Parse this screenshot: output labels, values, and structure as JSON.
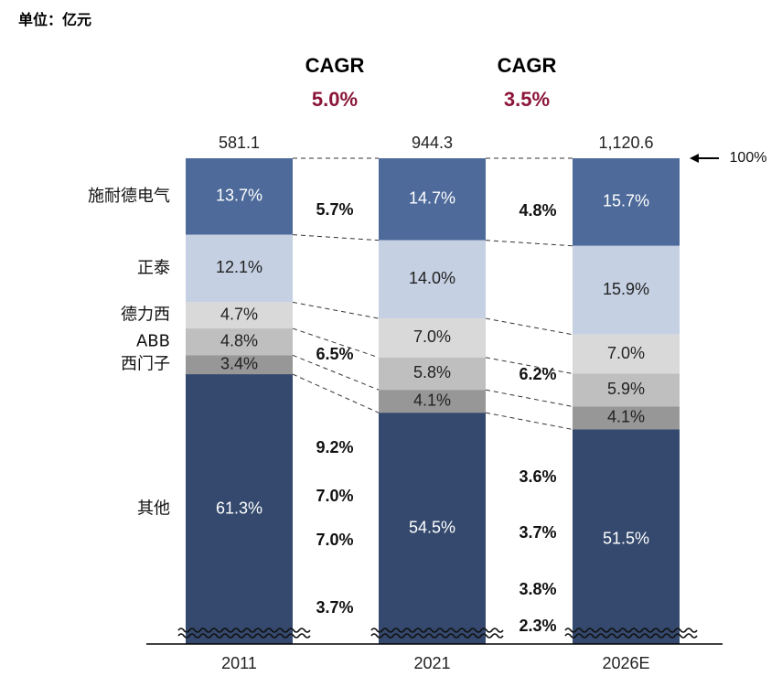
{
  "unit_label": "单位：亿元",
  "chart_data": {
    "type": "bar",
    "stacked": true,
    "normalized": true,
    "categories": [
      "2011",
      "2021",
      "2026E"
    ],
    "totals": [
      "581.1",
      "944.3",
      "1,120.6"
    ],
    "top_marker": "100%",
    "axis_break": true,
    "series": [
      {
        "name": "施耐德电气",
        "values": [
          13.7,
          14.7,
          15.7
        ],
        "labels": [
          "13.7%",
          "14.7%",
          "15.7%"
        ],
        "color": "#4D6A9A",
        "text_color": "#ffffff"
      },
      {
        "name": "正泰",
        "values": [
          12.1,
          14.0,
          15.9
        ],
        "labels": [
          "12.1%",
          "14.0%",
          "15.9%"
        ],
        "color": "#C5D0E2",
        "text_color": "#222222"
      },
      {
        "name": "德力西",
        "values": [
          4.7,
          7.0,
          7.0
        ],
        "labels": [
          "4.7%",
          "7.0%",
          "7.0%"
        ],
        "color": "#D9D9D9",
        "text_color": "#222222"
      },
      {
        "name": "ABB",
        "values": [
          4.8,
          5.8,
          5.9
        ],
        "labels": [
          "4.8%",
          "5.8%",
          "5.9%"
        ],
        "color": "#BFBFBF",
        "text_color": "#222222"
      },
      {
        "name": "西门子",
        "values": [
          3.4,
          4.1,
          4.1
        ],
        "labels": [
          "3.4%",
          "4.1%",
          "4.1%"
        ],
        "color": "#979797",
        "text_color": "#222222"
      },
      {
        "name": "其他",
        "values": [
          61.3,
          54.5,
          51.5
        ],
        "labels": [
          "61.3%",
          "54.5%",
          "51.5%"
        ],
        "color": "#34496D",
        "text_color": "#ffffff"
      }
    ],
    "cagr_overall": [
      {
        "title": "CAGR",
        "value": "5.0%"
      },
      {
        "title": "CAGR",
        "value": "3.5%"
      }
    ],
    "segment_cagr": [
      [
        "5.7%",
        "6.5%",
        "9.2%",
        "7.0%",
        "7.0%",
        "3.7%"
      ],
      [
        "4.8%",
        "6.2%",
        "3.6%",
        "3.7%",
        "3.8%",
        "2.3%"
      ]
    ],
    "accent_color": "#8B1538"
  }
}
